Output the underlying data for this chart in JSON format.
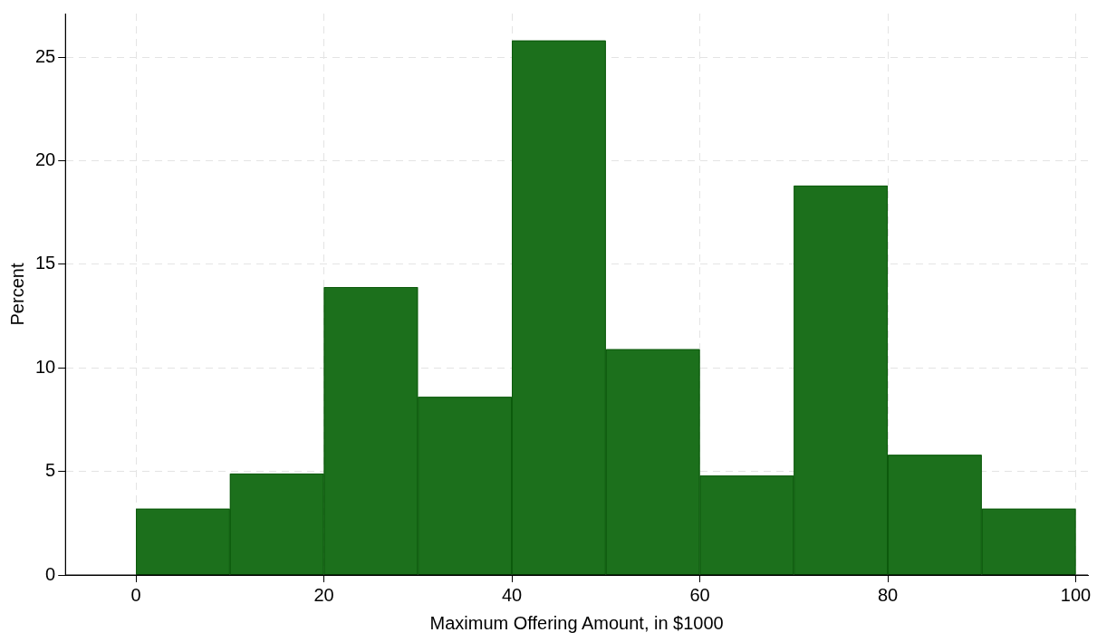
{
  "chart_data": {
    "type": "histogram",
    "xlabel": "Maximum Offering Amount, in $1000",
    "ylabel": "Percent",
    "bins": [
      0,
      10,
      20,
      30,
      40,
      50,
      60,
      70,
      80,
      90,
      100
    ],
    "values": [
      3.2,
      4.9,
      13.9,
      8.6,
      25.8,
      10.9,
      4.8,
      18.8,
      5.8,
      3.2
    ],
    "color": "#1c701c",
    "xlim": [
      -7.5,
      101.3
    ],
    "ylim": [
      0,
      27.1
    ],
    "xticks": [
      0,
      20,
      40,
      60,
      80,
      100
    ],
    "yticks": [
      0,
      5,
      10,
      15,
      20,
      25
    ],
    "grid": true
  }
}
